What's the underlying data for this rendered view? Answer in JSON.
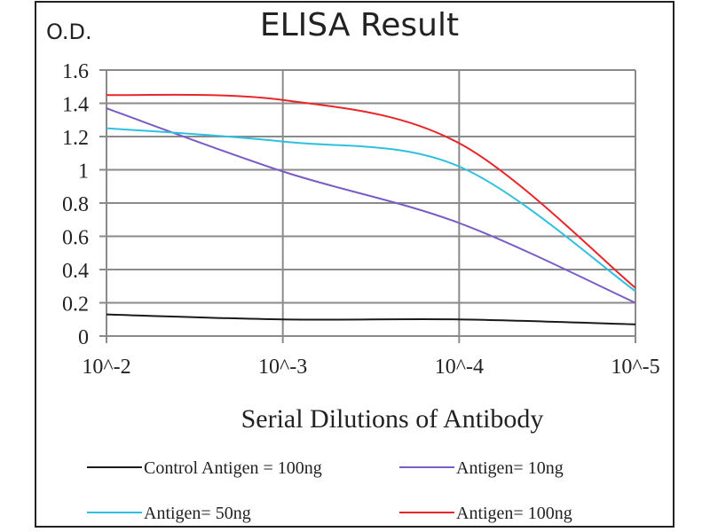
{
  "chart_data": {
    "type": "line",
    "title": "ELISA Result",
    "ylabel": "O.D.",
    "xlabel": "Serial Dilutions  of Antibody",
    "categories": [
      "10^-2",
      "10^-3",
      "10^-4",
      "10^-5"
    ],
    "ylim": [
      0,
      1.6
    ],
    "yticks": [
      "0",
      "0.2",
      "0.4",
      "0.6",
      "0.8",
      "1",
      "1.2",
      "1.4",
      "1.6"
    ],
    "grid": true,
    "legend_position": "bottom",
    "series": [
      {
        "name": "Control Antigen = 100ng",
        "color": "#1a1a1a",
        "values": [
          0.13,
          0.1,
          0.1,
          0.07
        ]
      },
      {
        "name": "Antigen= 10ng",
        "color": "#7b5cc4",
        "values": [
          1.37,
          0.99,
          0.68,
          0.2
        ]
      },
      {
        "name": "Antigen= 50ng",
        "color": "#2fc0e0",
        "values": [
          1.25,
          1.17,
          1.02,
          0.27
        ]
      },
      {
        "name": "Antigen= 100ng",
        "color": "#e8262a",
        "values": [
          1.45,
          1.42,
          1.16,
          0.29
        ]
      }
    ]
  }
}
